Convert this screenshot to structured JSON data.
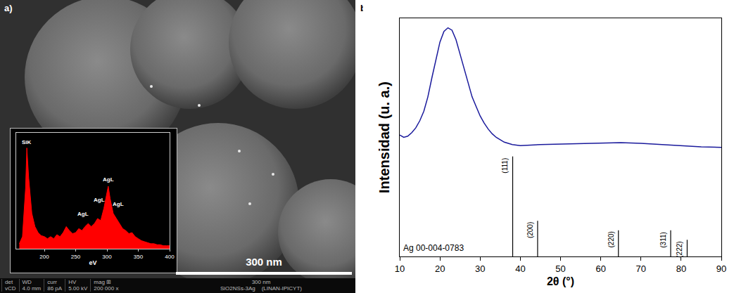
{
  "panels": {
    "a": "a)",
    "b": "b)"
  },
  "sem_image": {
    "scale_bar": "300 nm",
    "info_bar": {
      "headers": [
        "det",
        "WD",
        "curr",
        "HV",
        "mag ⊞"
      ],
      "values": [
        "vCD",
        "4.0 mm",
        "86 pA",
        "5.00 kV",
        "200 000 x"
      ],
      "scale": "300 nm",
      "sample": "SiO2NSs-3Ag",
      "lab": "(LINAN-IPICYT)"
    }
  },
  "chart_data": [
    {
      "type": "area",
      "x_label": "eV",
      "x": [
        160,
        165,
        170,
        172,
        175,
        180,
        185,
        190,
        195,
        200,
        205,
        210,
        215,
        220,
        225,
        230,
        235,
        240,
        245,
        250,
        255,
        260,
        265,
        270,
        275,
        280,
        285,
        290,
        295,
        300,
        302,
        305,
        310,
        315,
        320,
        325,
        330,
        335,
        340,
        345,
        350,
        355,
        360,
        365,
        370,
        375,
        380,
        385,
        390,
        395,
        400
      ],
      "values": [
        5,
        12,
        60,
        100,
        70,
        35,
        22,
        16,
        13,
        12,
        10,
        12,
        10,
        14,
        12,
        16,
        22,
        18,
        15,
        16,
        20,
        18,
        22,
        25,
        22,
        25,
        30,
        28,
        40,
        55,
        62,
        50,
        35,
        30,
        25,
        20,
        18,
        15,
        16,
        12,
        10,
        8,
        7,
        6,
        5,
        5,
        4,
        4,
        3,
        3,
        3
      ],
      "color": "#ff0000",
      "xlim": [
        155,
        400
      ],
      "xticks": [
        200,
        250,
        300,
        350,
        400
      ],
      "ylim": [
        0,
        115
      ],
      "tick_labels": "x",
      "annotations": [
        {
          "text": "SiK",
          "x": 172,
          "y": 101
        },
        {
          "text": "AgL",
          "x": 302,
          "y": 64
        },
        {
          "text": "AgL",
          "x": 288,
          "y": 44
        },
        {
          "text": "AgL",
          "x": 318,
          "y": 40
        },
        {
          "text": "AgL",
          "x": 262,
          "y": 30
        }
      ]
    },
    {
      "type": "line",
      "x_label": "2θ (°)",
      "y_label": "Intensidad (u. a.)",
      "x": [
        10,
        11,
        12,
        13,
        14,
        15,
        16,
        17,
        18,
        19,
        20,
        21,
        22,
        23,
        24,
        25,
        26,
        27,
        28,
        29,
        30,
        31,
        32,
        33,
        34,
        35,
        36,
        38,
        40,
        45,
        50,
        55,
        60,
        65,
        70,
        75,
        80,
        85,
        90
      ],
      "values": [
        51,
        50,
        50.5,
        52,
        54,
        57,
        61,
        67,
        75,
        83,
        90,
        94.5,
        96,
        95,
        91,
        85,
        79,
        73,
        67,
        63,
        59,
        56,
        53.5,
        51.5,
        50,
        49,
        48,
        47,
        46.5,
        47,
        47.2,
        47.5,
        47.8,
        47.8,
        47.5,
        47,
        46.5,
        46,
        45.8
      ],
      "color": "#1a1a9c",
      "xlim": [
        10,
        90
      ],
      "xticks": [
        10,
        20,
        30,
        40,
        50,
        60,
        70,
        80,
        90
      ],
      "ylim": [
        0,
        100
      ],
      "tick_labels": "x",
      "reference": {
        "name": "Ag 00-004-0783",
        "x": [
          38.1,
          44.3,
          64.4,
          77.4,
          81.5
        ],
        "values": [
          42,
          15,
          11,
          11,
          7
        ],
        "labels": [
          "(111)",
          "(200)",
          "(220)",
          "(311)",
          "(222)"
        ],
        "color": "#000000"
      }
    }
  ]
}
